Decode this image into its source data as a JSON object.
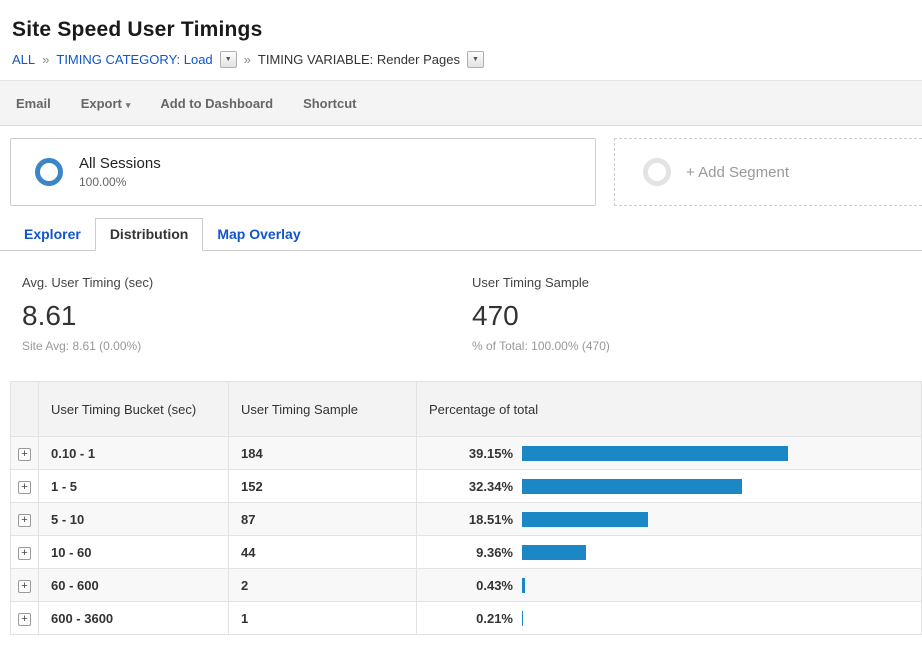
{
  "colors": {
    "link_blue": "#1155cc",
    "bar_blue": "#1b87c5",
    "segment_ring_blue": "#3d85c6"
  },
  "header": {
    "title": "Site Speed User Timings",
    "breadcrumb": {
      "all": "ALL",
      "separator": "»",
      "category": "TIMING CATEGORY: Load",
      "variable": "TIMING VARIABLE: Render Pages",
      "dropdown_glyph": "▼"
    }
  },
  "toolbar": {
    "email": "Email",
    "export": "Export",
    "export_caret": "▾",
    "add_to_dashboard": "Add to Dashboard",
    "shortcut": "Shortcut"
  },
  "segments": {
    "all_sessions": {
      "label": "All Sessions",
      "value": "100.00%"
    },
    "add_segment": "+ Add Segment"
  },
  "tabs": {
    "explorer": "Explorer",
    "distribution": "Distribution",
    "map_overlay": "Map Overlay",
    "active": "Distribution"
  },
  "metrics": {
    "avg_timing": {
      "label": "Avg. User Timing (sec)",
      "value": "8.61",
      "sub": "Site Avg: 8.61 (0.00%)"
    },
    "sample": {
      "label": "User Timing Sample",
      "value": "470",
      "sub": "% of Total: 100.00% (470)"
    }
  },
  "table": {
    "columns": [
      "User Timing Bucket (sec)",
      "User Timing Sample",
      "Percentage of total"
    ],
    "expand_glyph": "+",
    "rows": [
      {
        "bucket": "0.10 - 1",
        "sample": "184",
        "percent_label": "39.15%",
        "percent": 39.15
      },
      {
        "bucket": "1 - 5",
        "sample": "152",
        "percent_label": "32.34%",
        "percent": 32.34
      },
      {
        "bucket": "5 - 10",
        "sample": "87",
        "percent_label": "18.51%",
        "percent": 18.51
      },
      {
        "bucket": "10 - 60",
        "sample": "44",
        "percent_label": "9.36%",
        "percent": 9.36
      },
      {
        "bucket": "60 - 600",
        "sample": "2",
        "percent_label": "0.43%",
        "percent": 0.43
      },
      {
        "bucket": "600 - 3600",
        "sample": "1",
        "percent_label": "0.21%",
        "percent": 0.21
      }
    ]
  }
}
